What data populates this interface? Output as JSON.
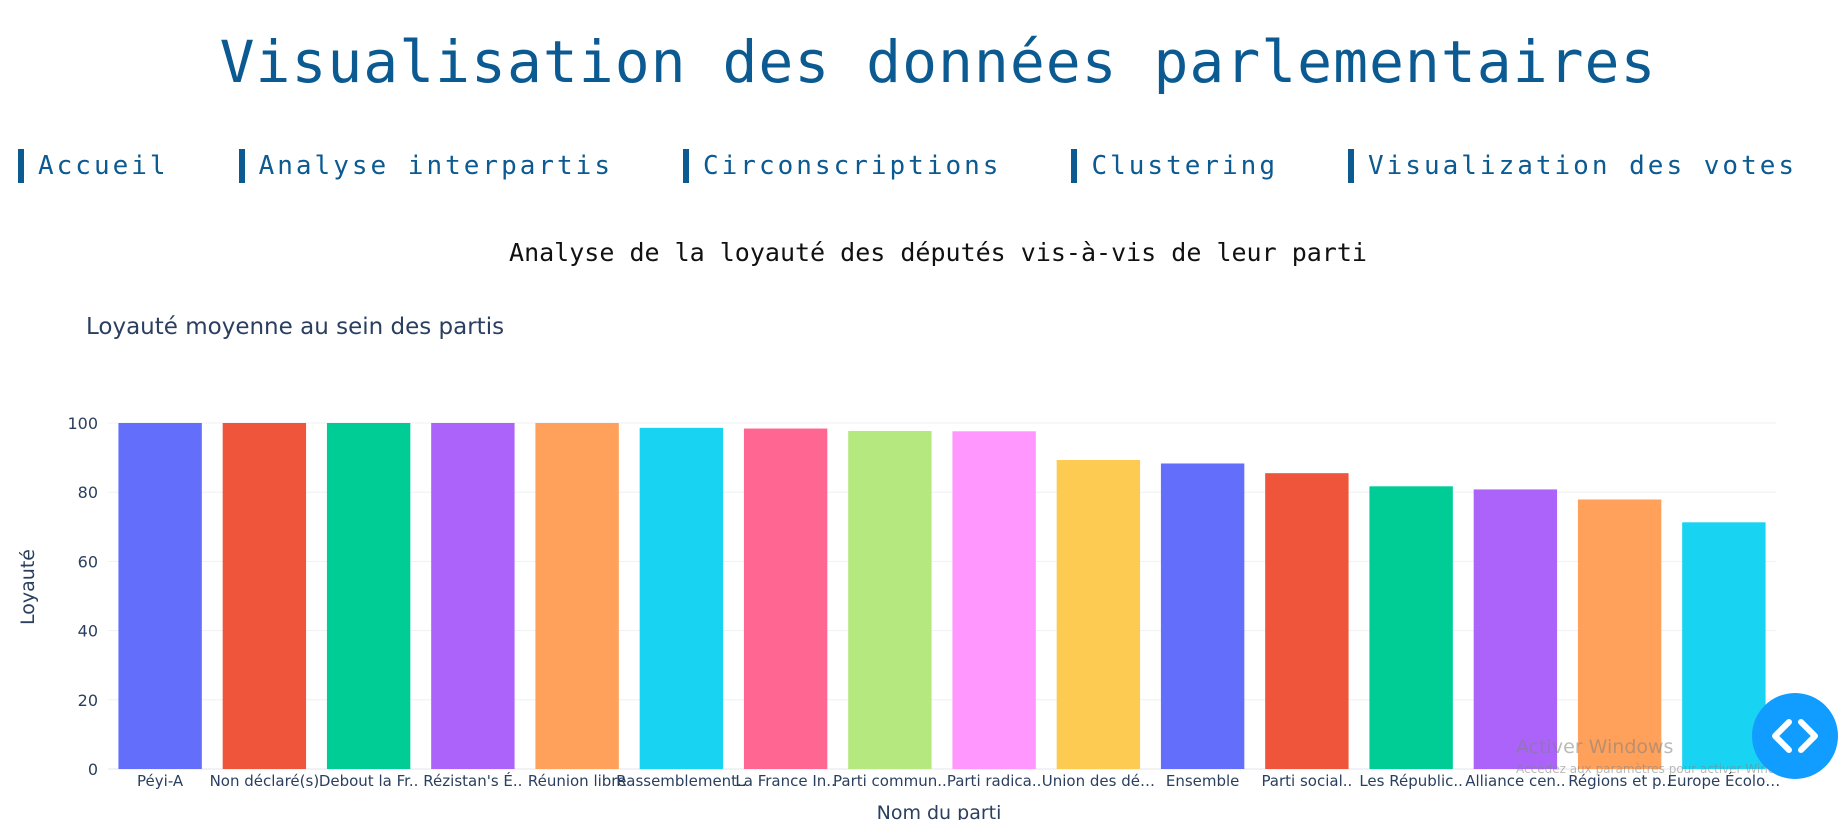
{
  "header": {
    "title": "Visualisation des données parlementaires"
  },
  "nav": {
    "items": [
      {
        "label": "Accueil"
      },
      {
        "label": "Analyse interpartis"
      },
      {
        "label": "Circonscriptions"
      },
      {
        "label": "Clustering"
      },
      {
        "label": "Visualization des votes"
      }
    ]
  },
  "section": {
    "title": "Analyse de la loyauté des députés vis-à-vis de leur parti"
  },
  "chart_data": {
    "type": "bar",
    "title": "Loyauté moyenne au sein des partis",
    "xlabel": "Nom du parti",
    "ylabel": "Loyauté",
    "ylim": [
      0,
      100
    ],
    "yticks": [
      0,
      20,
      40,
      60,
      80,
      100
    ],
    "grid": true,
    "categories": [
      "Péyi-A",
      "Non déclaré(s)",
      "Debout la Fr..",
      "Rézistan's É..",
      "Réunion libre",
      "Rassemblement..",
      "La France In..",
      "Parti commun..",
      "Parti radica..",
      "Union des dé…",
      "Ensemble",
      "Parti social..",
      "Les Républic..",
      "Alliance cen..",
      "Régions et p..",
      "Europe Écolo…"
    ],
    "values": [
      100,
      100,
      100,
      100,
      100,
      98.6,
      98.4,
      97.7,
      97.6,
      89.3,
      88.3,
      85.5,
      81.7,
      80.8,
      77.9,
      71.3
    ],
    "colors": [
      "#636efa",
      "#ef553b",
      "#00cc96",
      "#ab63fa",
      "#ffa15a",
      "#19d3f3",
      "#ff6692",
      "#b6e880",
      "#ff97ff",
      "#fecb52",
      "#636efa",
      "#ef553b",
      "#00cc96",
      "#ab63fa",
      "#ffa15a",
      "#19d3f3"
    ]
  },
  "fab": {
    "icon": "code-brackets-icon",
    "color": "#119dff"
  },
  "watermark": {
    "title": "Activer Windows",
    "subtitle": "Accédez aux paramètres pour activer Windows."
  }
}
